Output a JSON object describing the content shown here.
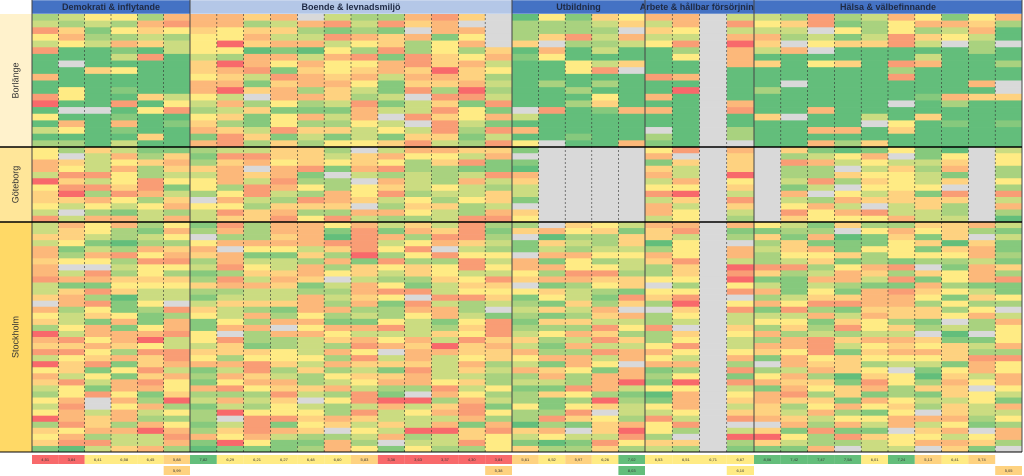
{
  "chart_data": {
    "type": "heatmap",
    "categories": [
      {
        "name": "Demokrati & inflytande",
        "columns": 6
      },
      {
        "name": "Boende & levnadsmiljö",
        "columns": 12
      },
      {
        "name": "Utbildning",
        "columns": 5
      },
      {
        "name": "Arbete & hållbar försörjning",
        "columns": 4
      },
      {
        "name": "Hälsa & välbefinnande",
        "columns": 10
      }
    ],
    "cities": [
      {
        "name": "Borlänge",
        "rows": 20
      },
      {
        "name": "Göteborg",
        "rows": 12
      },
      {
        "name": "Stockholm",
        "rows": 38
      }
    ],
    "footer_values": [
      "4,51",
      "3,84",
      "6,41",
      "6,58",
      "6,45",
      "5,88",
      "7,82",
      "6,29",
      "6,21",
      "6,27",
      "6,48",
      "6,60",
      "5,83",
      "3,36",
      "3,63",
      "3,37",
      "4,30",
      "3,84",
      "5,61",
      "6,52",
      "5,97",
      "6,26",
      "7,02",
      "6,53",
      "6,51",
      "6,71",
      "6,67",
      "8,06",
      "7,42",
      "7,47",
      "7,58",
      "6,01",
      "7,24",
      "5,13",
      "6,41",
      "5,74"
    ],
    "footer_second_row": [
      {
        "col": 5,
        "value": "5,99"
      },
      {
        "col": 17,
        "value": "5,38"
      },
      {
        "col": 22,
        "value": "8,03"
      },
      {
        "col": 26,
        "value": "6,10"
      },
      {
        "col": 36,
        "value": "5,05"
      }
    ],
    "colors": {
      "header_fill": "#4472c4",
      "header_light": "#b4c7e7",
      "borlange_band": "#fff2cc",
      "goteborg_band": "#ffe699",
      "stockholm_band": "#ffd966",
      "green": "#63be7b",
      "red": "#f8696b",
      "yellow": "#ffeb84",
      "missing": "#d9d9d9"
    }
  }
}
